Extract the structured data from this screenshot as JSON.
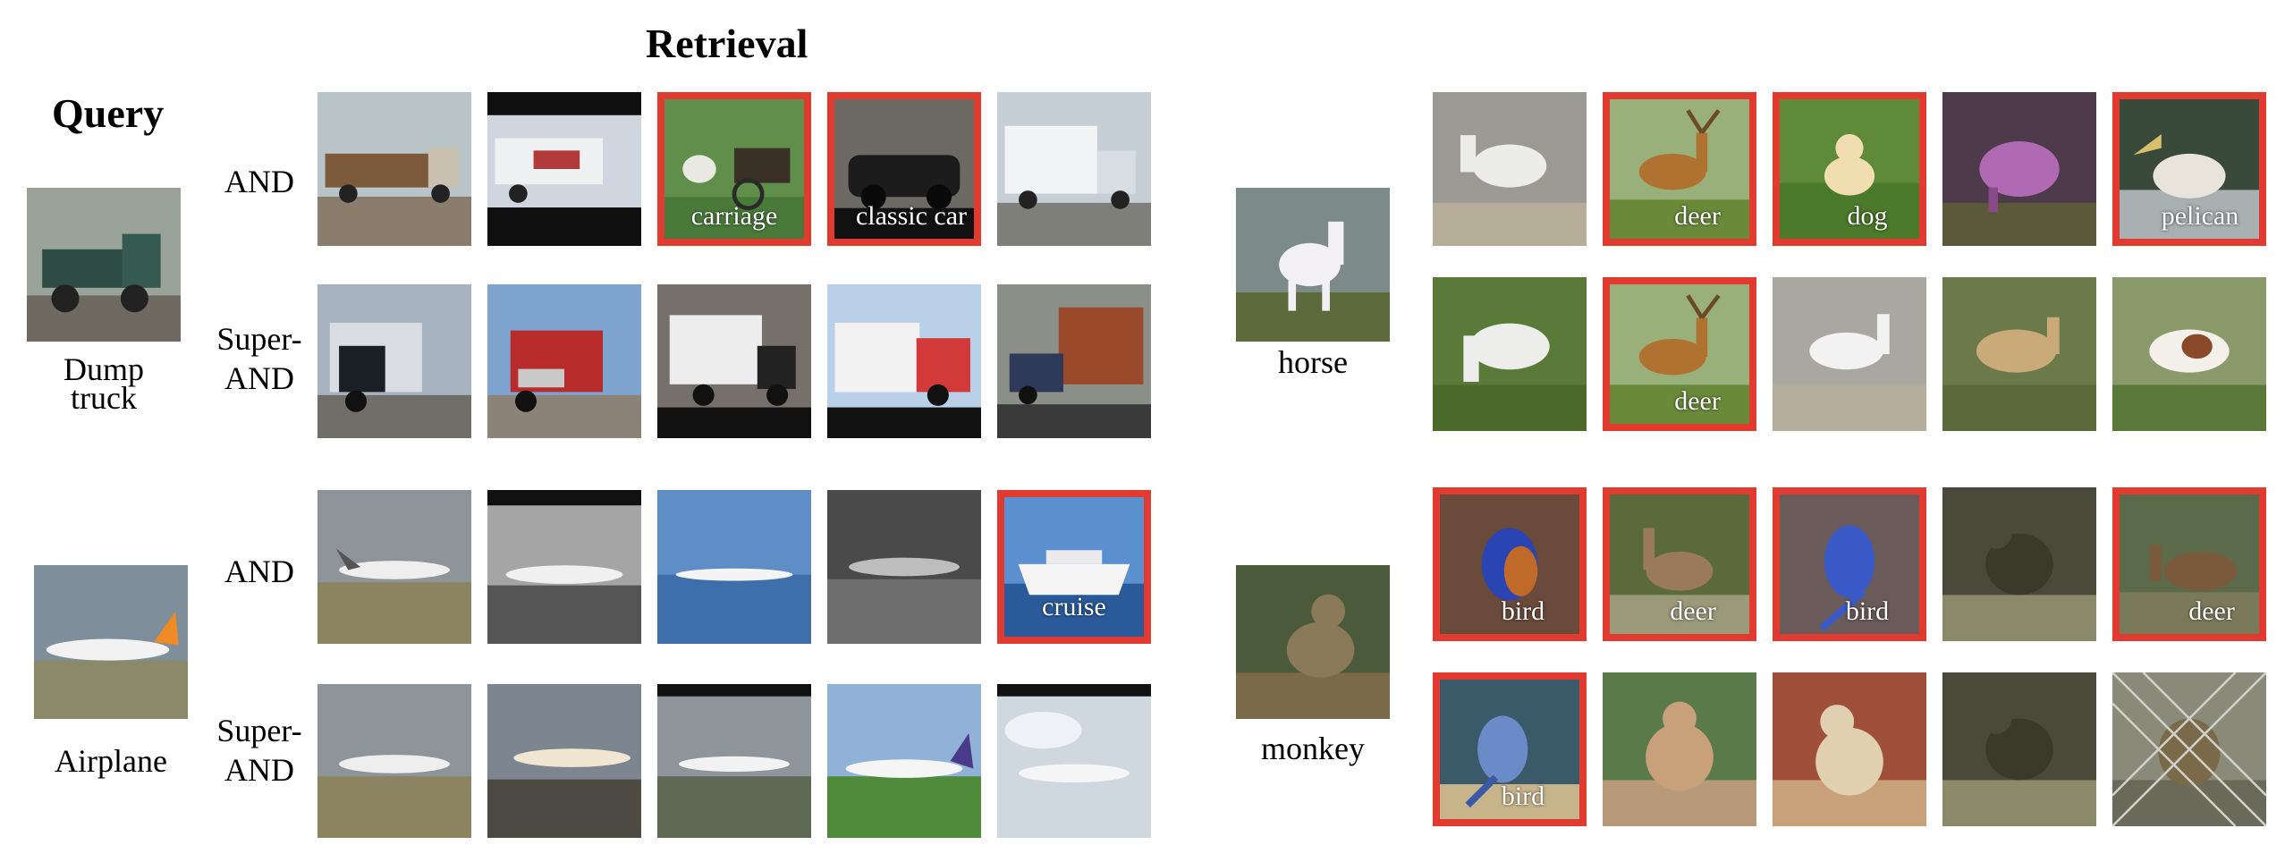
{
  "header": {
    "query": "Query",
    "retrieval": "Retrieval"
  },
  "row_labels": {
    "and": "AND",
    "super_and_line1": "Super-",
    "super_and_line2": "AND"
  },
  "panels": {
    "truck": {
      "query_label_line1": "Dump",
      "query_label_line2": "truck",
      "and_labels": [
        "",
        "",
        "carriage",
        "classic car",
        ""
      ],
      "super_labels": [
        "",
        "",
        "",
        "",
        ""
      ]
    },
    "airplane": {
      "query_label": "Airplane",
      "and_labels": [
        "",
        "",
        "",
        "",
        "cruise"
      ],
      "super_labels": [
        "",
        "",
        "",
        "",
        ""
      ]
    },
    "horse": {
      "query_label": "horse",
      "and_labels": [
        "",
        "deer",
        "dog",
        "",
        "pelican"
      ],
      "super_labels": [
        "",
        "deer",
        "",
        "",
        ""
      ]
    },
    "monkey": {
      "query_label": "monkey",
      "and_labels": [
        "bird",
        "deer",
        "bird",
        "",
        "deer"
      ],
      "super_labels": [
        "bird",
        "",
        "",
        "",
        ""
      ]
    }
  },
  "colors": {
    "wrong_border": "#e03b2e"
  },
  "icons": {
    "truck": "truck-icon",
    "airplane": "airplane-icon",
    "horse": "horse-icon",
    "monkey": "monkey-icon",
    "carriage": "carriage-icon",
    "car": "car-icon",
    "ship": "cruise-ship-icon",
    "deer": "deer-icon",
    "dog": "dog-icon",
    "pelican": "pelican-icon",
    "bird": "bird-icon"
  }
}
